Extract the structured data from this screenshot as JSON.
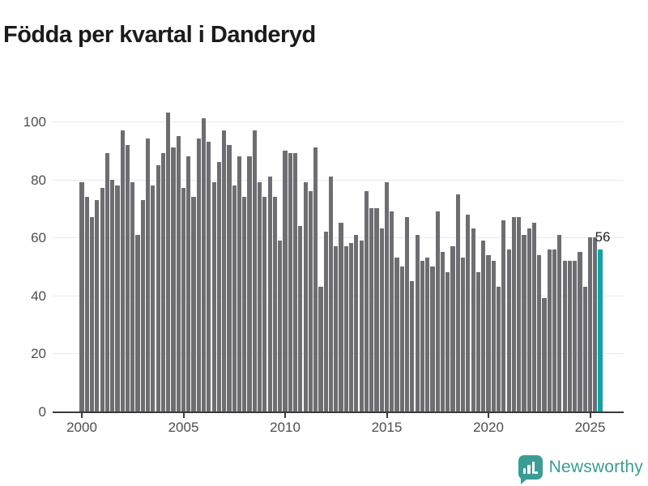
{
  "title": "Födda per kvartal i Danderyd",
  "colors": {
    "bar": "#6d6d72",
    "highlight": "#0aa6a2",
    "grid": "#e9e9e9",
    "axis": "#3a3a3a",
    "tick_label": "#4d4d4d",
    "title": "#1b1b1b",
    "logo": "#3b9c95"
  },
  "chart_data": {
    "type": "bar",
    "title": "Födda per kvartal i Danderyd",
    "x_start": "2000-Q1",
    "x_end": "2025-Q3",
    "values": [
      79,
      74,
      67,
      73,
      77,
      89,
      80,
      78,
      97,
      92,
      79,
      61,
      73,
      94,
      78,
      85,
      89,
      103,
      91,
      95,
      77,
      88,
      74,
      94,
      101,
      93,
      79,
      86,
      97,
      92,
      78,
      88,
      74,
      88,
      97,
      79,
      74,
      81,
      74,
      59,
      90,
      89,
      89,
      64,
      79,
      76,
      91,
      43,
      62,
      81,
      57,
      65,
      57,
      58,
      61,
      59,
      76,
      70,
      70,
      63,
      79,
      69,
      53,
      50,
      67,
      45,
      61,
      52,
      53,
      50,
      69,
      55,
      48,
      57,
      75,
      53,
      68,
      63,
      48,
      59,
      54,
      52,
      43,
      66,
      56,
      67,
      67,
      61,
      63,
      65,
      54,
      39,
      56,
      56,
      61,
      52,
      52,
      52,
      55,
      43,
      60,
      60,
      56
    ],
    "highlight_last_index": 102,
    "last_value_label": "56",
    "xticks": [
      {
        "label": "2000",
        "index": 0
      },
      {
        "label": "2005",
        "index": 20
      },
      {
        "label": "2010",
        "index": 40
      },
      {
        "label": "2015",
        "index": 60
      },
      {
        "label": "2020",
        "index": 80
      },
      {
        "label": "2025",
        "index": 100
      }
    ],
    "yticks": [
      0,
      20,
      40,
      60,
      80,
      100
    ],
    "ylim": [
      0,
      105
    ],
    "grid": "horizontal",
    "legend": "none"
  },
  "footer": {
    "brand": "Newsworthy"
  }
}
